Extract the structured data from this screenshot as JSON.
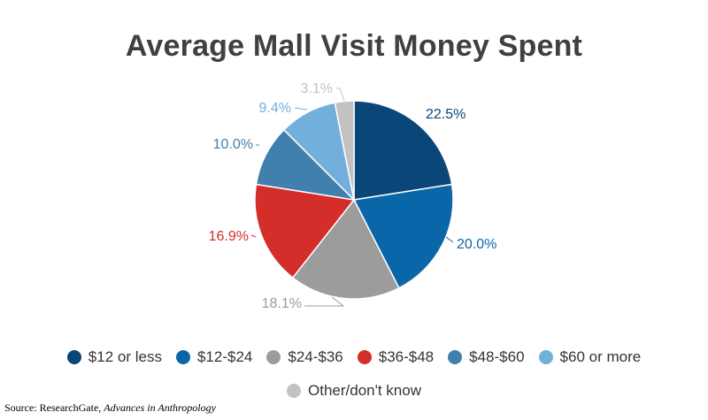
{
  "title": "Average Mall Visit Money Spent",
  "source": {
    "prefix": "Source: ResearchGate, ",
    "publication": "Advances in Anthropology"
  },
  "chart_data": {
    "type": "pie",
    "title": "Average Mall Visit Money Spent",
    "start": "12 o'clock, clockwise",
    "legend_position": "bottom",
    "slices": [
      {
        "label": "$12 or less",
        "value": 22.5,
        "value_label": "22.5%",
        "color": "#0b4678"
      },
      {
        "label": "$12-$24",
        "value": 20.0,
        "value_label": "20.0%",
        "color": "#0966a8"
      },
      {
        "label": "$24-$36",
        "value": 18.1,
        "value_label": "18.1%",
        "color": "#9c9c9c"
      },
      {
        "label": "$36-$48",
        "value": 16.9,
        "value_label": "16.9%",
        "color": "#d32e2a"
      },
      {
        "label": "$48-$60",
        "value": 10.0,
        "value_label": "10.0%",
        "color": "#4180ae"
      },
      {
        "label": "$60 or more",
        "value": 9.4,
        "value_label": "9.4%",
        "color": "#73afdb"
      },
      {
        "label": "Other/don't know",
        "value": 3.1,
        "value_label": "3.1%",
        "color": "#c2c2c2"
      }
    ]
  }
}
